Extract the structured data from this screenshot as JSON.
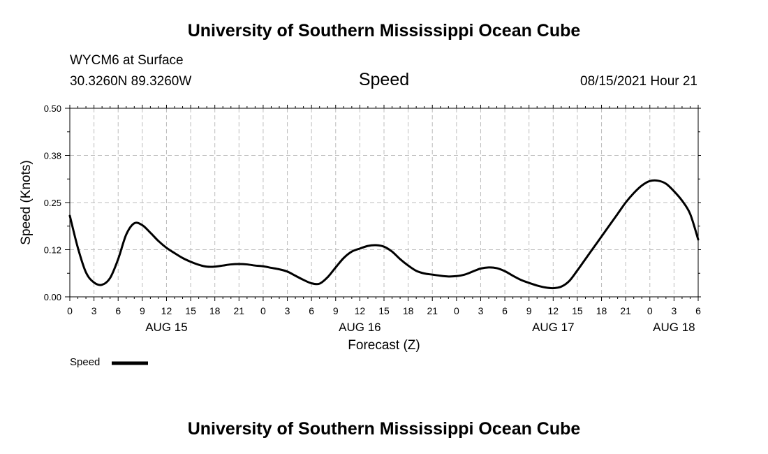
{
  "header": {
    "title": "University of Southern Mississippi Ocean Cube",
    "station": "WYCM6 at Surface",
    "coordinates": "30.3260N  89.3260W",
    "chart_title": "Speed",
    "datetime": "08/15/2021 Hour 21"
  },
  "footer": {
    "title": "University of Southern Mississippi Ocean Cube"
  },
  "chart_data": {
    "type": "line",
    "title": "Speed",
    "xlabel": "Forecast (Z)",
    "ylabel": "Speed (Knots)",
    "xlim": [
      0,
      78
    ],
    "ylim": [
      0,
      0.5
    ],
    "y_ticks": [
      0,
      0.125,
      0.25,
      0.375,
      0.5
    ],
    "y_tick_labels": [
      "0.00",
      "0.12",
      "0.25",
      "0.38",
      "0.50"
    ],
    "x_tick_hours": [
      0,
      3,
      6,
      9,
      12,
      15,
      18,
      21,
      24,
      27,
      30,
      33,
      36,
      39,
      42,
      45,
      48,
      51,
      54,
      57,
      60,
      63,
      66,
      69,
      72,
      75,
      78
    ],
    "x_tick_labels": [
      "0",
      "3",
      "6",
      "9",
      "12",
      "15",
      "18",
      "21",
      "0",
      "3",
      "6",
      "9",
      "12",
      "15",
      "18",
      "21",
      "0",
      "3",
      "6",
      "9",
      "12",
      "15",
      "18",
      "21",
      "0",
      "3",
      "6"
    ],
    "date_labels": [
      {
        "hour": 12,
        "label": "AUG 15"
      },
      {
        "hour": 36,
        "label": "AUG 16"
      },
      {
        "hour": 60,
        "label": "AUG 17"
      },
      {
        "hour": 75,
        "label": "AUG 18"
      }
    ],
    "grid": true,
    "legend": "bottom-left",
    "series": [
      {
        "name": "Speed",
        "color": "#000000",
        "x": [
          0,
          1,
          2,
          3,
          4,
          5,
          6,
          7,
          8,
          9,
          10,
          11,
          12,
          13,
          14,
          15,
          16,
          17,
          18,
          19,
          20,
          21,
          22,
          23,
          24,
          25,
          26,
          27,
          28,
          29,
          30,
          31,
          32,
          33,
          34,
          35,
          36,
          37,
          38,
          39,
          40,
          41,
          42,
          43,
          44,
          45,
          46,
          47,
          48,
          49,
          50,
          51,
          52,
          53,
          54,
          55,
          56,
          57,
          58,
          59,
          60,
          61,
          62,
          63,
          64,
          65,
          66,
          67,
          68,
          69,
          70,
          71,
          72,
          73,
          74,
          75,
          76,
          77,
          78
        ],
        "values": [
          0.215,
          0.13,
          0.065,
          0.038,
          0.032,
          0.05,
          0.1,
          0.165,
          0.195,
          0.19,
          0.17,
          0.148,
          0.13,
          0.116,
          0.103,
          0.093,
          0.085,
          0.08,
          0.08,
          0.083,
          0.086,
          0.087,
          0.086,
          0.083,
          0.081,
          0.077,
          0.073,
          0.067,
          0.056,
          0.045,
          0.036,
          0.035,
          0.052,
          0.078,
          0.103,
          0.12,
          0.128,
          0.135,
          0.137,
          0.133,
          0.12,
          0.1,
          0.083,
          0.069,
          0.062,
          0.059,
          0.056,
          0.054,
          0.055,
          0.059,
          0.067,
          0.075,
          0.078,
          0.076,
          0.068,
          0.056,
          0.045,
          0.037,
          0.03,
          0.025,
          0.023,
          0.027,
          0.042,
          0.07,
          0.1,
          0.13,
          0.16,
          0.19,
          0.22,
          0.25,
          0.275,
          0.295,
          0.307,
          0.308,
          0.3,
          0.28,
          0.255,
          0.22,
          0.152
        ]
      }
    ]
  }
}
